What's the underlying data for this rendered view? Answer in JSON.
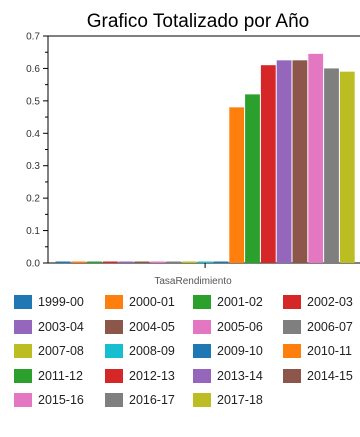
{
  "chart_data": {
    "type": "bar",
    "title": "Grafico Totalizado por Año",
    "xlabel": "TasaRendimiento",
    "ylabel": "",
    "categories": [
      "TasaRendimiento"
    ],
    "ylim": [
      0,
      0.7
    ],
    "yticks": [
      "0.0",
      "0.1",
      "0.2",
      "0.3",
      "0.4",
      "0.5",
      "0.6",
      "0.7"
    ],
    "grid": false,
    "legend_position": "bottom",
    "series": [
      {
        "name": "1999-00",
        "color": "#1f77b4",
        "values": [
          0
        ]
      },
      {
        "name": "2000-01",
        "color": "#ff7f0e",
        "values": [
          0
        ]
      },
      {
        "name": "2001-02",
        "color": "#2ca02c",
        "values": [
          0
        ]
      },
      {
        "name": "2002-03",
        "color": "#d62728",
        "values": [
          0
        ]
      },
      {
        "name": "2003-04",
        "color": "#9467bd",
        "values": [
          0
        ]
      },
      {
        "name": "2004-05",
        "color": "#8c564b",
        "values": [
          0
        ]
      },
      {
        "name": "2005-06",
        "color": "#e377c2",
        "values": [
          0
        ]
      },
      {
        "name": "2006-07",
        "color": "#7f7f7f",
        "values": [
          0
        ]
      },
      {
        "name": "2007-08",
        "color": "#bcbd22",
        "values": [
          0
        ]
      },
      {
        "name": "2008-09",
        "color": "#17becf",
        "values": [
          0
        ]
      },
      {
        "name": "2009-10",
        "color": "#1f77b4",
        "values": [
          0
        ]
      },
      {
        "name": "2010-11",
        "color": "#ff7f0e",
        "values": [
          0.48
        ]
      },
      {
        "name": "2011-12",
        "color": "#2ca02c",
        "values": [
          0.52
        ]
      },
      {
        "name": "2012-13",
        "color": "#d62728",
        "values": [
          0.61
        ]
      },
      {
        "name": "2013-14",
        "color": "#9467bd",
        "values": [
          0.625
        ]
      },
      {
        "name": "2014-15",
        "color": "#8c564b",
        "values": [
          0.625
        ]
      },
      {
        "name": "2015-16",
        "color": "#e377c2",
        "values": [
          0.645
        ]
      },
      {
        "name": "2016-17",
        "color": "#7f7f7f",
        "values": [
          0.6
        ]
      },
      {
        "name": "2017-18",
        "color": "#bcbd22",
        "values": [
          0.59
        ]
      }
    ]
  }
}
